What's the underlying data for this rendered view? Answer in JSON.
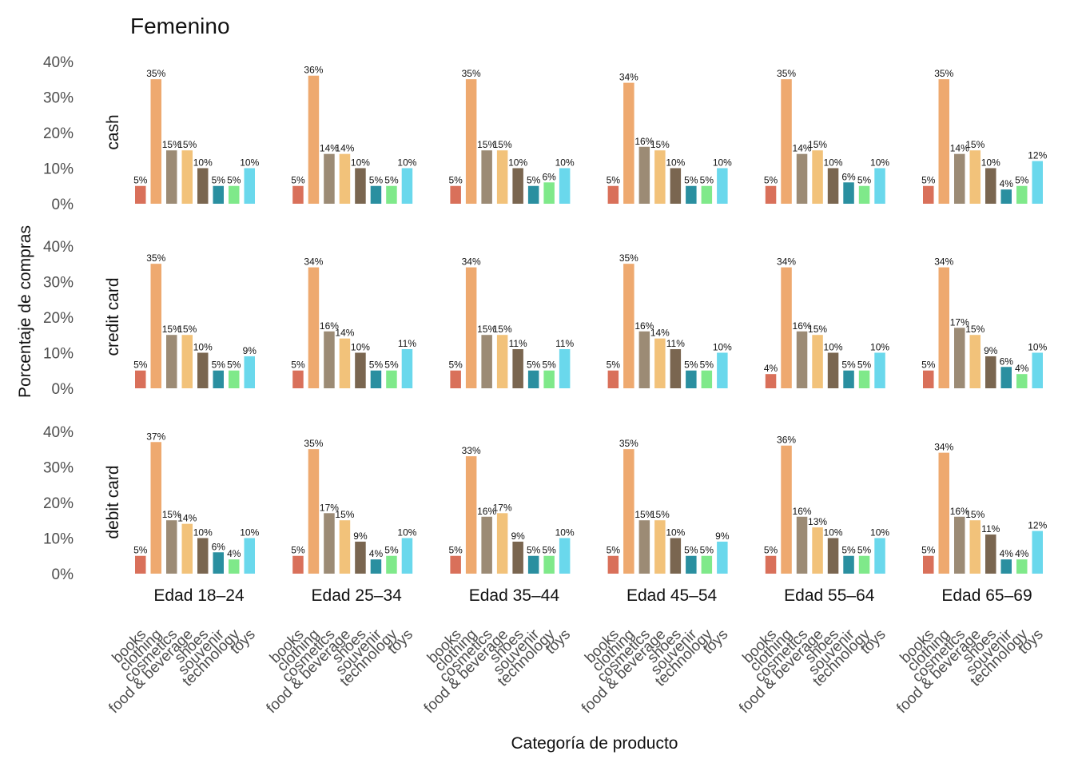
{
  "chart_data": {
    "type": "bar",
    "title": "Femenino",
    "xlabel": "Categoría de producto",
    "ylabel": "Porcentaje de compras",
    "ylim": [
      0,
      0.42
    ],
    "yticks": [
      "0%",
      "10%",
      "20%",
      "30%",
      "40%"
    ],
    "ytick_values": [
      0,
      0.1,
      0.2,
      0.3,
      0.4
    ],
    "categories": [
      "books",
      "clothing",
      "cosmetics",
      "food & beverage",
      "shoes",
      "souvenir",
      "technology",
      "toys"
    ],
    "colors": [
      "#d9705a",
      "#eea96f",
      "#9c8b75",
      "#f2c27a",
      "#7a6650",
      "#2a8fa0",
      "#7fe98a",
      "#6ad8ec"
    ],
    "columns": [
      "Edad 18–24",
      "Edad 25–34",
      "Edad 35–44",
      "Edad 45–54",
      "Edad 55–64",
      "Edad 65–69"
    ],
    "rows": [
      "cash",
      "credit card",
      "debit card"
    ],
    "grid": false,
    "legend": "none",
    "panels": [
      [
        {
          "values": [
            0.05,
            0.35,
            0.15,
            0.15,
            0.1,
            0.05,
            0.05,
            0.1
          ],
          "labels": [
            "5%",
            "35%",
            "15%",
            "15%",
            "10%",
            "5%",
            "5%",
            "10%"
          ]
        },
        {
          "values": [
            0.05,
            0.36,
            0.14,
            0.14,
            0.1,
            0.05,
            0.05,
            0.1
          ],
          "labels": [
            "5%",
            "36%",
            "14%",
            "14%",
            "10%",
            "5%",
            "5%",
            "10%"
          ]
        },
        {
          "values": [
            0.05,
            0.35,
            0.15,
            0.15,
            0.1,
            0.05,
            0.06,
            0.1
          ],
          "labels": [
            "5%",
            "35%",
            "15%",
            "15%",
            "10%",
            "5%",
            "6%",
            "10%"
          ]
        },
        {
          "values": [
            0.05,
            0.34,
            0.16,
            0.15,
            0.1,
            0.05,
            0.05,
            0.1
          ],
          "labels": [
            "5%",
            "34%",
            "16%",
            "15%",
            "10%",
            "5%",
            "5%",
            "10%"
          ]
        },
        {
          "values": [
            0.05,
            0.35,
            0.14,
            0.15,
            0.1,
            0.06,
            0.05,
            0.1
          ],
          "labels": [
            "5%",
            "35%",
            "14%",
            "15%",
            "10%",
            "6%",
            "5%",
            "10%"
          ]
        },
        {
          "values": [
            0.05,
            0.35,
            0.14,
            0.15,
            0.1,
            0.04,
            0.05,
            0.12
          ],
          "labels": [
            "5%",
            "35%",
            "14%",
            "15%",
            "10%",
            "4%",
            "5%",
            "12%"
          ]
        }
      ],
      [
        {
          "values": [
            0.05,
            0.35,
            0.15,
            0.15,
            0.1,
            0.05,
            0.05,
            0.09
          ],
          "labels": [
            "5%",
            "35%",
            "15%",
            "15%",
            "10%",
            "5%",
            "5%",
            "9%"
          ]
        },
        {
          "values": [
            0.05,
            0.34,
            0.16,
            0.14,
            0.1,
            0.05,
            0.05,
            0.11
          ],
          "labels": [
            "5%",
            "34%",
            "16%",
            "14%",
            "10%",
            "5%",
            "5%",
            "11%"
          ]
        },
        {
          "values": [
            0.05,
            0.34,
            0.15,
            0.15,
            0.11,
            0.05,
            0.05,
            0.11
          ],
          "labels": [
            "5%",
            "34%",
            "15%",
            "15%",
            "11%",
            "5%",
            "5%",
            "11%"
          ]
        },
        {
          "values": [
            0.05,
            0.35,
            0.16,
            0.14,
            0.11,
            0.05,
            0.05,
            0.1
          ],
          "labels": [
            "5%",
            "35%",
            "16%",
            "14%",
            "11%",
            "5%",
            "5%",
            "10%"
          ]
        },
        {
          "values": [
            0.04,
            0.34,
            0.16,
            0.15,
            0.1,
            0.05,
            0.05,
            0.1
          ],
          "labels": [
            "4%",
            "34%",
            "16%",
            "15%",
            "10%",
            "5%",
            "5%",
            "10%"
          ]
        },
        {
          "values": [
            0.05,
            0.34,
            0.17,
            0.15,
            0.09,
            0.06,
            0.04,
            0.1
          ],
          "labels": [
            "5%",
            "34%",
            "17%",
            "15%",
            "9%",
            "6%",
            "4%",
            "10%"
          ]
        }
      ],
      [
        {
          "values": [
            0.05,
            0.37,
            0.15,
            0.14,
            0.1,
            0.06,
            0.04,
            0.1
          ],
          "labels": [
            "5%",
            "37%",
            "15%",
            "14%",
            "10%",
            "6%",
            "4%",
            "10%"
          ]
        },
        {
          "values": [
            0.05,
            0.35,
            0.17,
            0.15,
            0.09,
            0.04,
            0.05,
            0.1
          ],
          "labels": [
            "5%",
            "35%",
            "17%",
            "15%",
            "9%",
            "4%",
            "5%",
            "10%"
          ]
        },
        {
          "values": [
            0.05,
            0.33,
            0.16,
            0.17,
            0.09,
            0.05,
            0.05,
            0.1
          ],
          "labels": [
            "5%",
            "33%",
            "16%",
            "17%",
            "9%",
            "5%",
            "5%",
            "10%"
          ]
        },
        {
          "values": [
            0.05,
            0.35,
            0.15,
            0.15,
            0.1,
            0.05,
            0.05,
            0.09
          ],
          "labels": [
            "5%",
            "35%",
            "15%",
            "15%",
            "10%",
            "5%",
            "5%",
            "9%"
          ]
        },
        {
          "values": [
            0.05,
            0.36,
            0.16,
            0.13,
            0.1,
            0.05,
            0.05,
            0.1
          ],
          "labels": [
            "5%",
            "36%",
            "16%",
            "13%",
            "10%",
            "5%",
            "5%",
            "10%"
          ]
        },
        {
          "values": [
            0.05,
            0.34,
            0.16,
            0.15,
            0.11,
            0.04,
            0.04,
            0.12
          ],
          "labels": [
            "5%",
            "34%",
            "16%",
            "15%",
            "11%",
            "4%",
            "4%",
            "12%"
          ]
        }
      ]
    ]
  }
}
